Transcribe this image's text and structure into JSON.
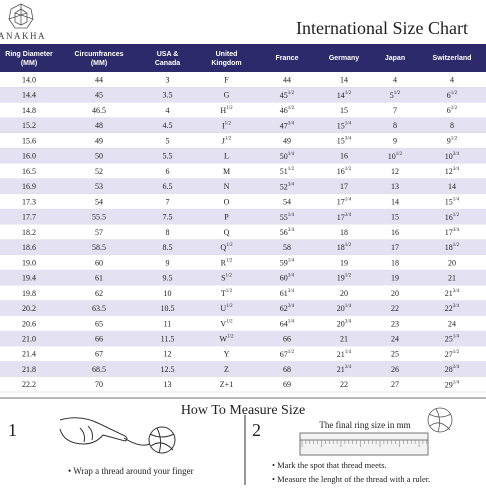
{
  "header": {
    "brand": "ANAKHA",
    "title": "International Size Chart"
  },
  "table": {
    "columns": [
      "Ring Diameter (MM)",
      "Circumfrances (MM)",
      "USA & Canada",
      "United Kingdom",
      "France",
      "Germany",
      "Japan",
      "Switzerland"
    ],
    "rows": [
      [
        "14.0",
        "44",
        "3",
        "F",
        "44",
        "14",
        "4",
        "4"
      ],
      [
        "14.4",
        "45",
        "3.5",
        "G",
        {
          "text": "45",
          "sup": "1/2"
        },
        {
          "text": "14",
          "sup": "1/2"
        },
        {
          "text": "5",
          "sup": "1/2"
        },
        {
          "text": "6",
          "sup": "1/2"
        }
      ],
      [
        "14.8",
        "46.5",
        "4",
        {
          "text": "H",
          "sup": "1/2"
        },
        {
          "text": "46",
          "sup": "1/2"
        },
        "15",
        "7",
        {
          "text": "6",
          "sup": "1/2"
        }
      ],
      [
        "15.2",
        "48",
        "4.5",
        {
          "text": "I",
          "sup": "1/2"
        },
        {
          "text": "47",
          "sup": "3/4"
        },
        {
          "text": "15",
          "sup": "1/4"
        },
        "8",
        "8"
      ],
      [
        "15.6",
        "49",
        "5",
        {
          "text": "J",
          "sup": "1/2"
        },
        "49",
        {
          "text": "15",
          "sup": "3/4"
        },
        "9",
        {
          "text": "9",
          "sup": "1/2"
        }
      ],
      [
        "16.0",
        "50",
        "5.5",
        "L",
        {
          "text": "50",
          "sup": "1/4"
        },
        "16",
        {
          "text": "10",
          "sup": "1/2"
        },
        {
          "text": "10",
          "sup": "3/4"
        }
      ],
      [
        "16.5",
        "52",
        "6",
        "M",
        {
          "text": "51",
          "sup": "1/2"
        },
        {
          "text": "16",
          "sup": "1/2"
        },
        "12",
        {
          "text": "12",
          "sup": "3/4"
        }
      ],
      [
        "16.9",
        "53",
        "6.5",
        "N",
        {
          "text": "52",
          "sup": "3/4"
        },
        "17",
        "13",
        "14"
      ],
      [
        "17.3",
        "54",
        "7",
        "O",
        "54",
        {
          "text": "17",
          "sup": "1/4"
        },
        "14",
        {
          "text": "15",
          "sup": "1/4"
        }
      ],
      [
        "17.7",
        "55.5",
        "7.5",
        "P",
        {
          "text": "55",
          "sup": "1/4"
        },
        {
          "text": "17",
          "sup": "3/4"
        },
        "15",
        {
          "text": "16",
          "sup": "1/2"
        }
      ],
      [
        "18.2",
        "57",
        "8",
        "Q",
        {
          "text": "56",
          "sup": "3/4"
        },
        "18",
        "16",
        {
          "text": "17",
          "sup": "3/4"
        }
      ],
      [
        "18.6",
        "58.5",
        "8.5",
        {
          "text": "Q",
          "sup": "1/2"
        },
        "58",
        {
          "text": "18",
          "sup": "1/2"
        },
        "17",
        {
          "text": "18",
          "sup": "1/2"
        }
      ],
      [
        "19.0",
        "60",
        "9",
        {
          "text": "R",
          "sup": "1/2"
        },
        {
          "text": "59",
          "sup": "1/4"
        },
        "19",
        "18",
        "20"
      ],
      [
        "19.4",
        "61",
        "9.5",
        {
          "text": "S",
          "sup": "1/2"
        },
        {
          "text": "60",
          "sup": "3/4"
        },
        {
          "text": "19",
          "sup": "1/2"
        },
        "19",
        "21"
      ],
      [
        "19.8",
        "62",
        "10",
        {
          "text": "T",
          "sup": "1/2"
        },
        {
          "text": "61",
          "sup": "3/4"
        },
        "20",
        "20",
        {
          "text": "21",
          "sup": "3/4"
        }
      ],
      [
        "20.2",
        "63.5",
        "10.5",
        {
          "text": "U",
          "sup": "1/2"
        },
        {
          "text": "62",
          "sup": "3/4"
        },
        {
          "text": "20",
          "sup": "1/4"
        },
        "22",
        {
          "text": "22",
          "sup": "3/4"
        }
      ],
      [
        "20.6",
        "65",
        "11",
        {
          "text": "V",
          "sup": "1/2"
        },
        {
          "text": "64",
          "sup": "1/4"
        },
        {
          "text": "20",
          "sup": "3/4"
        },
        "23",
        "24"
      ],
      [
        "21.0",
        "66",
        "11.5",
        {
          "text": "W",
          "sup": "1/2"
        },
        "66",
        "21",
        "24",
        {
          "text": "25",
          "sup": "1/4"
        }
      ],
      [
        "21.4",
        "67",
        "12",
        "Y",
        {
          "text": "67",
          "sup": "1/2"
        },
        {
          "text": "21",
          "sup": "1/4"
        },
        "25",
        {
          "text": "27",
          "sup": "1/2"
        }
      ],
      [
        "21.8",
        "68.5",
        "12.5",
        "Z",
        "68",
        {
          "text": "21",
          "sup": "3/4"
        },
        "26",
        {
          "text": "28",
          "sup": "3/4"
        }
      ],
      [
        "22.2",
        "70",
        "13",
        "Z+1",
        "69",
        "22",
        "27",
        {
          "text": "29",
          "sup": "1/4"
        }
      ]
    ]
  },
  "howto": {
    "title": "How To Measure Size",
    "step1": {
      "number": "1",
      "text": "Wrap a thread around your finger"
    },
    "step2": {
      "number": "2",
      "caption": "The final ring size in mm",
      "bullets": [
        "Mark the spot that thread meets.",
        "Measure the lenght of the thread with a ruler."
      ]
    }
  }
}
